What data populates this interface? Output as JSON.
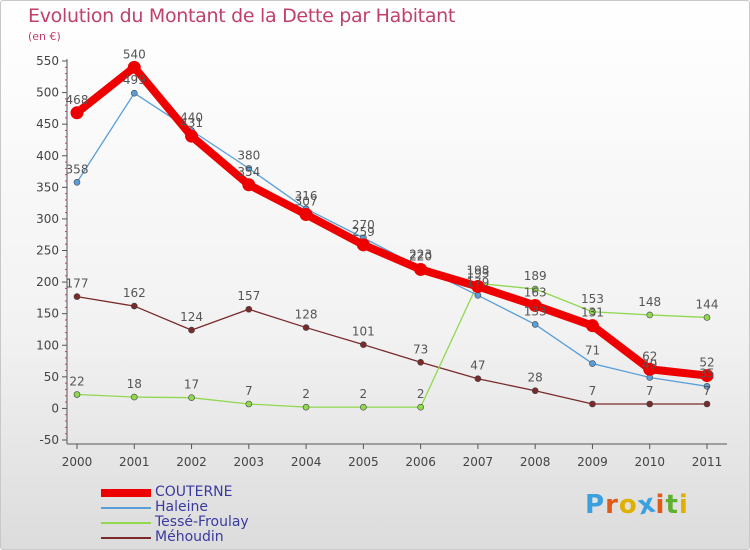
{
  "header": {
    "title": "Evolution du Montant de la Dette par Habitant",
    "unit": "(en €)"
  },
  "logo": {
    "text": "Proxiti",
    "colors": [
      "#3aa0e0",
      "#e05a1a",
      "#e0b000",
      "#3aa0e0",
      "#e05a1a",
      "#60b030",
      "#e0b000"
    ]
  },
  "chart_data": {
    "type": "line",
    "title": "Evolution du Montant de la Dette par Habitant",
    "ylabel": "(en €)",
    "xlabel": "",
    "x": [
      "2000",
      "2001",
      "2002",
      "2003",
      "2004",
      "2005",
      "2006",
      "2007",
      "2008",
      "2009",
      "2010",
      "2011"
    ],
    "ylim": [
      -50,
      550
    ],
    "yticks": [
      -50,
      0,
      50,
      100,
      150,
      200,
      250,
      300,
      350,
      400,
      450,
      500,
      550
    ],
    "grid": false,
    "legend_position": "bottom-left",
    "series": [
      {
        "name": "COUTERNE",
        "color": "#ee0000",
        "values": [
          468,
          540,
          431,
          354,
          307,
          259,
          220,
          193,
          163,
          131,
          62,
          52
        ],
        "labels": [
          "468",
          "540",
          "431",
          "354",
          "307",
          "259",
          "220",
          "193",
          "163",
          "131",
          "62",
          "52"
        ]
      },
      {
        "name": "Haleine",
        "color": "#5a9ed8",
        "values": [
          358,
          499,
          440,
          380,
          316,
          270,
          223,
          179,
          133,
          71,
          49,
          35
        ],
        "labels": [
          "358",
          "499",
          "440",
          "380",
          "316",
          "270",
          "223",
          "179",
          "133",
          "71",
          "49",
          "35"
        ]
      },
      {
        "name": "Tessé-Froulay",
        "color": "#8fd850",
        "values": [
          22,
          18,
          17,
          7,
          2,
          2,
          2,
          198,
          189,
          153,
          148,
          144
        ],
        "labels": [
          "22",
          "18",
          "17",
          "7",
          "2",
          "2",
          "2",
          "198",
          "189",
          "153",
          "148",
          "144"
        ]
      },
      {
        "name": "Méhoudin",
        "color": "#7a2a2a",
        "values": [
          177,
          162,
          124,
          157,
          128,
          101,
          73,
          47,
          28,
          7,
          7,
          7
        ],
        "labels": [
          "177",
          "162",
          "124",
          "157",
          "128",
          "101",
          "73",
          "47",
          "28",
          "7",
          "7",
          "7"
        ]
      }
    ]
  }
}
